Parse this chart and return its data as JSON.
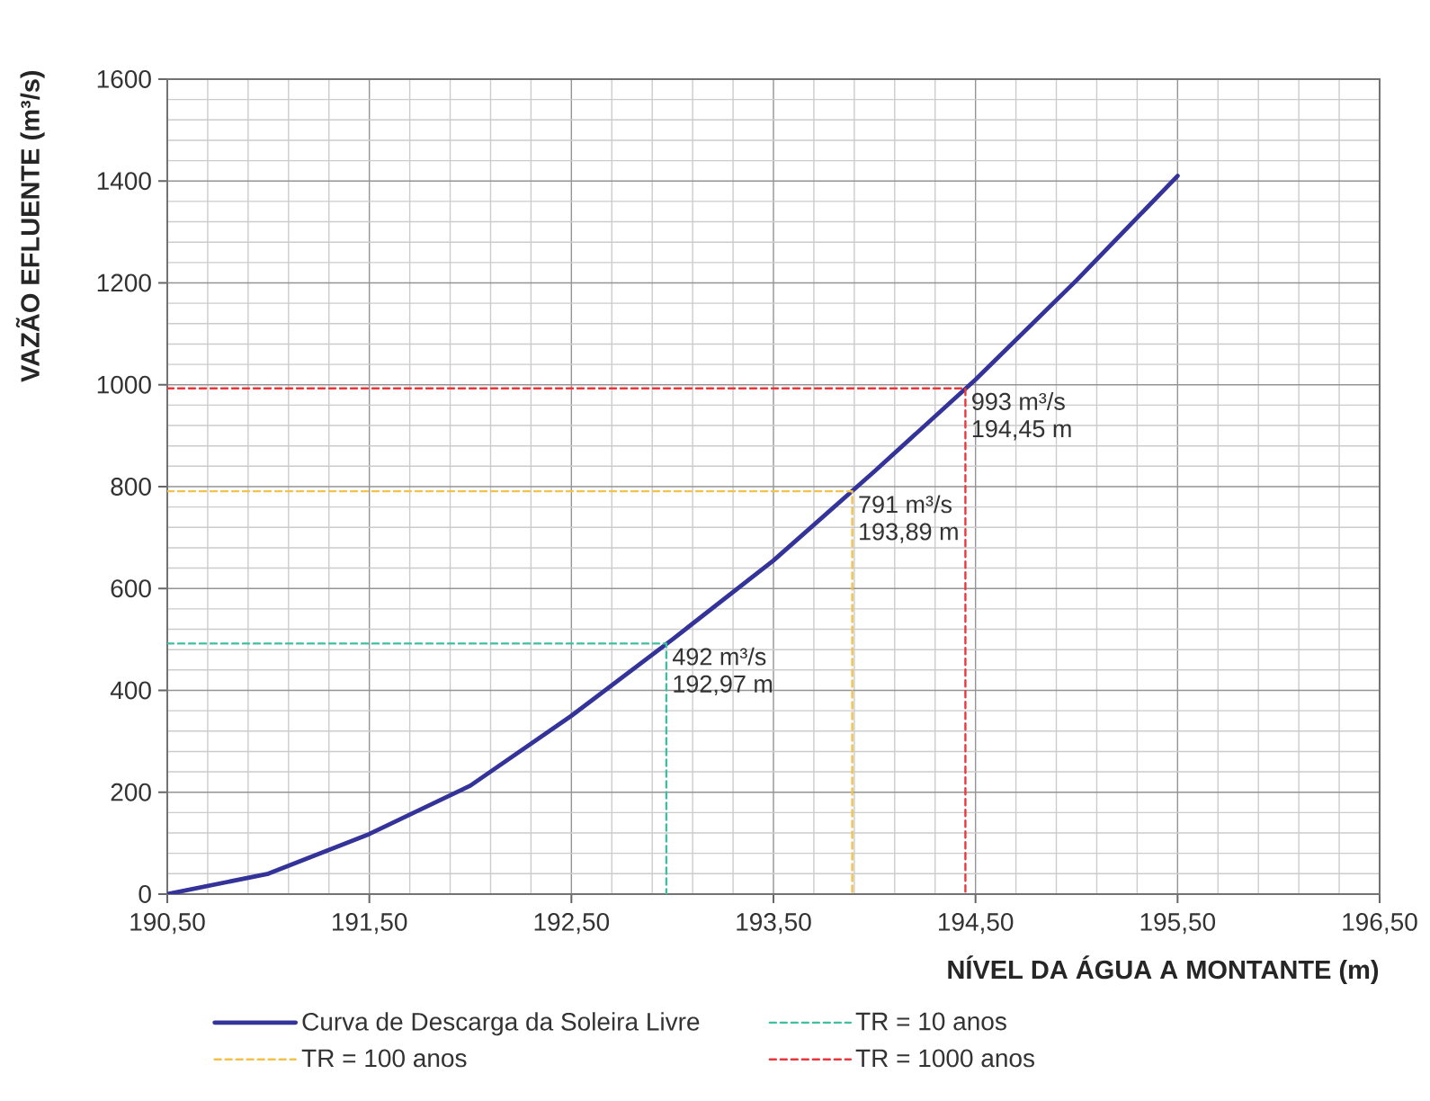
{
  "chart_data": {
    "type": "line",
    "xlabel": "NÍVEL DA ÁGUA A MONTANTE (m)",
    "ylabel": "VAZÃO EFLUENTE (m³/s)",
    "x": [
      190.5,
      191.0,
      191.5,
      192.0,
      192.5,
      193.0,
      193.5,
      194.0,
      194.5,
      195.0,
      195.5
    ],
    "series": [
      {
        "name": "Curva de Descarga da Soleira Livre",
        "color": "#333399",
        "line_style": "solid",
        "values": [
          0,
          40,
          118,
          213,
          350,
          500,
          655,
          830,
          1010,
          1205,
          1410
        ]
      },
      {
        "name": "TR = 10 anos",
        "color": "#3fbf9f",
        "line_style": "dashed",
        "x": [
          190.5,
          192.97,
          192.97
        ],
        "values": [
          492,
          492,
          0
        ]
      },
      {
        "name": "TR = 100 anos",
        "color": "#f2c14e",
        "line_style": "dashed",
        "x": [
          190.5,
          193.89,
          193.89
        ],
        "values": [
          791,
          791,
          0
        ]
      },
      {
        "name": "TR = 1000 anos",
        "color": "#e8383d",
        "line_style": "dashed",
        "x": [
          190.5,
          194.45,
          194.45
        ],
        "values": [
          993,
          993,
          0
        ]
      }
    ],
    "xlim": [
      190.5,
      196.5
    ],
    "ylim": [
      0,
      1600
    ],
    "xticks": [
      {
        "value": 190.5,
        "label": "190,50"
      },
      {
        "value": 191.5,
        "label": "191,50"
      },
      {
        "value": 192.5,
        "label": "192,50"
      },
      {
        "value": 193.5,
        "label": "193,50"
      },
      {
        "value": 194.5,
        "label": "194,50"
      },
      {
        "value": 195.5,
        "label": "195,50"
      },
      {
        "value": 196.5,
        "label": "196,50"
      }
    ],
    "yticks": [
      0,
      200,
      400,
      600,
      800,
      1000,
      1200,
      1400,
      1600
    ],
    "grid": true,
    "legend": "bottom",
    "annotations": [
      {
        "text": "492 m³/s",
        "x": 192.97,
        "y": 492
      },
      {
        "text": "192,97 m",
        "x": 192.97,
        "y": 492
      },
      {
        "text": "791 m³/s",
        "x": 193.89,
        "y": 791
      },
      {
        "text": "193,89 m",
        "x": 193.89,
        "y": 791
      },
      {
        "text": "993 m³/s",
        "x": 194.45,
        "y": 993
      },
      {
        "text": "194,45 m",
        "x": 194.45,
        "y": 993
      }
    ]
  }
}
